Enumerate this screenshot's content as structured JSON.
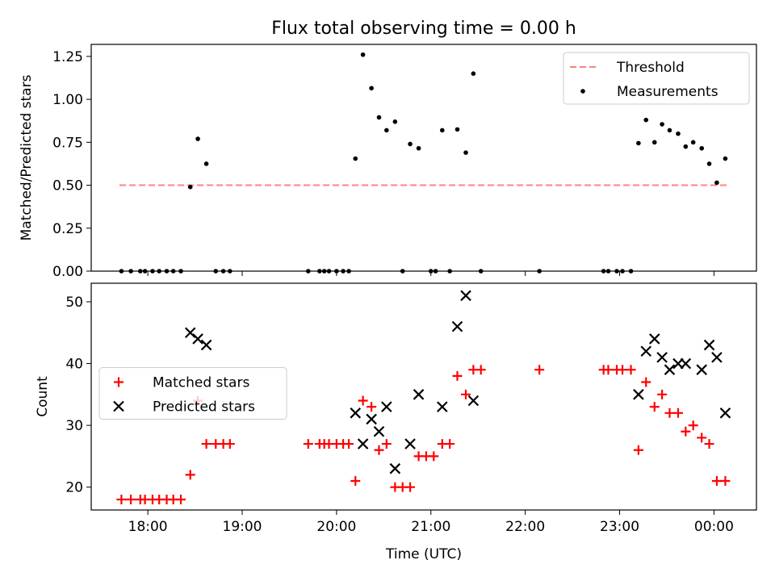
{
  "figure_title": "Flux total observing time = 0.00 h",
  "chart_data": [
    {
      "type": "scatter",
      "xlabel": "",
      "ylabel": "Matched/Predicted stars",
      "x_unit": "hours (UTC, 24 = 00:00 next day)",
      "xlim": [
        17.4,
        24.45
      ],
      "ylim": [
        0,
        1.32
      ],
      "yticks": [
        0.0,
        0.25,
        0.5,
        0.75,
        1.0,
        1.25
      ],
      "ytick_labels": [
        "0.00",
        "0.25",
        "0.50",
        "0.75",
        "1.00",
        "1.25"
      ],
      "legend": {
        "position": "upper right",
        "entries": [
          "Threshold",
          "Measurements"
        ]
      },
      "series": [
        {
          "name": "Threshold",
          "kind": "dashed-line",
          "color": "#ff8080",
          "points": [
            [
              17.7,
              0.5
            ],
            [
              24.15,
              0.5
            ]
          ]
        },
        {
          "name": "Measurements",
          "kind": "dots",
          "color": "#000000",
          "points": [
            [
              17.72,
              0
            ],
            [
              17.82,
              0
            ],
            [
              17.92,
              0
            ],
            [
              17.97,
              0
            ],
            [
              18.05,
              0
            ],
            [
              18.12,
              0
            ],
            [
              18.2,
              0
            ],
            [
              18.27,
              0
            ],
            [
              18.35,
              0
            ],
            [
              18.45,
              0.49
            ],
            [
              18.53,
              0.77
            ],
            [
              18.62,
              0.625
            ],
            [
              18.72,
              0
            ],
            [
              18.8,
              0
            ],
            [
              18.87,
              0
            ],
            [
              19.7,
              0
            ],
            [
              19.82,
              0
            ],
            [
              19.87,
              0
            ],
            [
              19.92,
              0
            ],
            [
              20.0,
              0
            ],
            [
              20.07,
              0
            ],
            [
              20.13,
              0
            ],
            [
              20.2,
              0.655
            ],
            [
              20.28,
              1.26
            ],
            [
              20.37,
              1.065
            ],
            [
              20.45,
              0.895
            ],
            [
              20.53,
              0.82
            ],
            [
              20.62,
              0.87
            ],
            [
              20.7,
              0
            ],
            [
              20.78,
              0.74
            ],
            [
              20.87,
              0.715
            ],
            [
              21.0,
              0
            ],
            [
              21.05,
              0
            ],
            [
              21.12,
              0.82
            ],
            [
              21.2,
              0
            ],
            [
              21.28,
              0.825
            ],
            [
              21.37,
              0.69
            ],
            [
              21.45,
              1.15
            ],
            [
              21.53,
              0
            ],
            [
              22.15,
              0
            ],
            [
              22.83,
              0
            ],
            [
              22.88,
              0
            ],
            [
              22.97,
              0
            ],
            [
              23.03,
              0
            ],
            [
              23.12,
              0
            ],
            [
              23.2,
              0.745
            ],
            [
              23.28,
              0.88
            ],
            [
              23.37,
              0.75
            ],
            [
              23.45,
              0.855
            ],
            [
              23.53,
              0.82
            ],
            [
              23.62,
              0.8
            ],
            [
              23.7,
              0.725
            ],
            [
              23.78,
              0.75
            ],
            [
              23.87,
              0.715
            ],
            [
              23.95,
              0.625
            ],
            [
              24.03,
              0.515
            ],
            [
              24.12,
              0.655
            ]
          ]
        }
      ]
    },
    {
      "type": "scatter",
      "xlabel": "Time (UTC)",
      "ylabel": "Count",
      "x_unit": "hours (UTC, 24 = 00:00 next day)",
      "xlim": [
        17.4,
        24.45
      ],
      "ylim": [
        16.3,
        53.0
      ],
      "xticks": [
        18,
        19,
        20,
        21,
        22,
        23,
        24
      ],
      "xtick_labels": [
        "18:00",
        "19:00",
        "20:00",
        "21:00",
        "22:00",
        "23:00",
        "00:00"
      ],
      "yticks": [
        20,
        30,
        40,
        50
      ],
      "ytick_labels": [
        "20",
        "30",
        "40",
        "50"
      ],
      "legend": {
        "position": "center left",
        "entries": [
          "Matched stars",
          "Predicted stars"
        ]
      },
      "series": [
        {
          "name": "Matched stars",
          "marker": "+",
          "color": "#ff0000",
          "points": [
            [
              17.72,
              18
            ],
            [
              17.82,
              18
            ],
            [
              17.92,
              18
            ],
            [
              17.97,
              18
            ],
            [
              18.05,
              18
            ],
            [
              18.12,
              18
            ],
            [
              18.2,
              18
            ],
            [
              18.27,
              18
            ],
            [
              18.35,
              18
            ],
            [
              18.45,
              22
            ],
            [
              18.53,
              34
            ],
            [
              18.62,
              27
            ],
            [
              18.72,
              27
            ],
            [
              18.8,
              27
            ],
            [
              18.87,
              27
            ],
            [
              19.7,
              27
            ],
            [
              19.82,
              27
            ],
            [
              19.87,
              27
            ],
            [
              19.92,
              27
            ],
            [
              20.0,
              27
            ],
            [
              20.07,
              27
            ],
            [
              20.13,
              27
            ],
            [
              20.2,
              21
            ],
            [
              20.28,
              34
            ],
            [
              20.37,
              33
            ],
            [
              20.45,
              26
            ],
            [
              20.53,
              27
            ],
            [
              20.62,
              20
            ],
            [
              20.7,
              20
            ],
            [
              20.78,
              20
            ],
            [
              20.87,
              25
            ],
            [
              20.95,
              25
            ],
            [
              21.03,
              25
            ],
            [
              21.12,
              27
            ],
            [
              21.2,
              27
            ],
            [
              21.28,
              38
            ],
            [
              21.37,
              35
            ],
            [
              21.45,
              39
            ],
            [
              21.53,
              39
            ],
            [
              22.15,
              39
            ],
            [
              22.83,
              39
            ],
            [
              22.88,
              39
            ],
            [
              22.97,
              39
            ],
            [
              23.03,
              39
            ],
            [
              23.12,
              39
            ],
            [
              23.2,
              26
            ],
            [
              23.28,
              37
            ],
            [
              23.37,
              33
            ],
            [
              23.45,
              35
            ],
            [
              23.53,
              32
            ],
            [
              23.62,
              32
            ],
            [
              23.7,
              29
            ],
            [
              23.78,
              30
            ],
            [
              23.87,
              28
            ],
            [
              23.95,
              27
            ],
            [
              24.03,
              21
            ],
            [
              24.12,
              21
            ]
          ]
        },
        {
          "name": "Predicted stars",
          "marker": "x",
          "color": "#000000",
          "points": [
            [
              18.45,
              45
            ],
            [
              18.53,
              44
            ],
            [
              18.62,
              43
            ],
            [
              20.2,
              32
            ],
            [
              20.28,
              27
            ],
            [
              20.37,
              31
            ],
            [
              20.45,
              29
            ],
            [
              20.53,
              33
            ],
            [
              20.62,
              23
            ],
            [
              20.78,
              27
            ],
            [
              20.87,
              35
            ],
            [
              21.12,
              33
            ],
            [
              21.28,
              46
            ],
            [
              21.37,
              51
            ],
            [
              21.45,
              34
            ],
            [
              23.2,
              35
            ],
            [
              23.28,
              42
            ],
            [
              23.37,
              44
            ],
            [
              23.45,
              41
            ],
            [
              23.53,
              39
            ],
            [
              23.62,
              40
            ],
            [
              23.7,
              40
            ],
            [
              23.87,
              39
            ],
            [
              23.95,
              43
            ],
            [
              24.03,
              41
            ],
            [
              24.12,
              32
            ]
          ]
        }
      ]
    }
  ]
}
